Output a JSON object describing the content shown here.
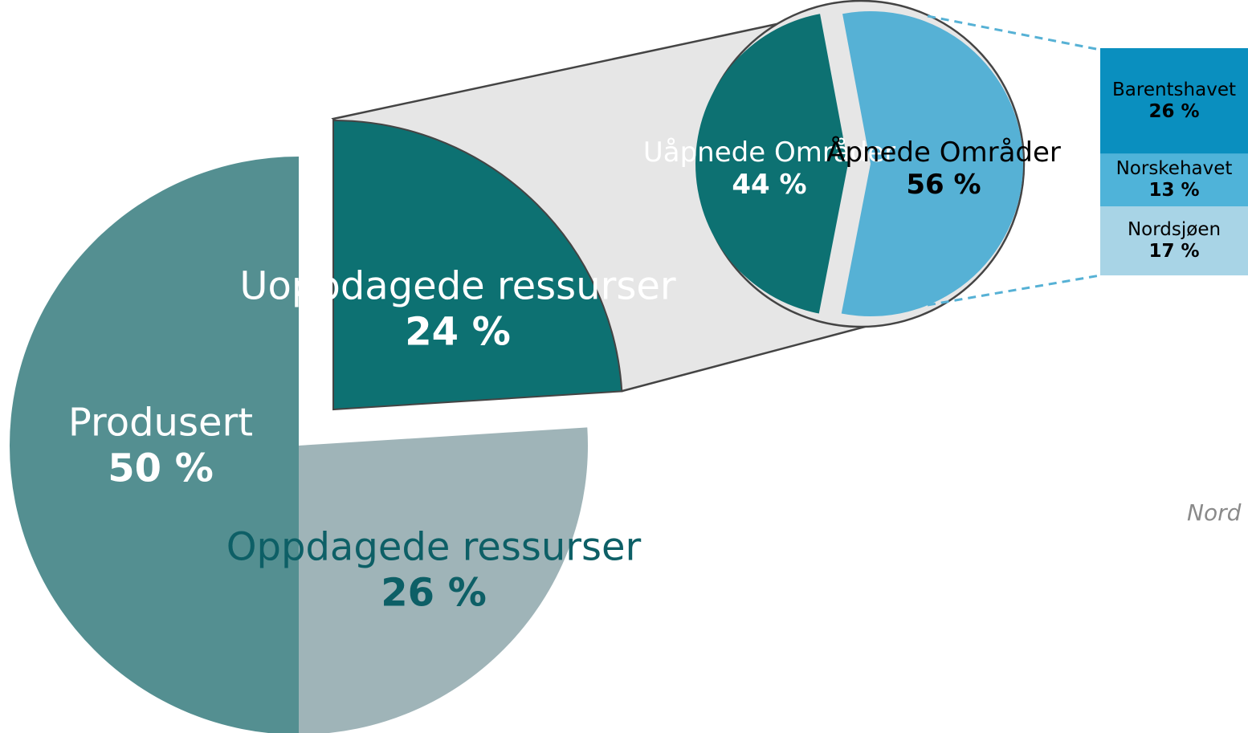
{
  "chart_data": [
    {
      "type": "pie",
      "categories": [
        "Uoppdagede ressurser",
        "Oppdagede ressurser",
        "Produsert"
      ],
      "values": [
        24,
        26,
        50
      ],
      "value_labels": [
        "24 %",
        "26 %",
        "50 %"
      ],
      "colors": [
        "#0d7172",
        "#9fb4b8",
        "#548f91"
      ],
      "label_colors": [
        "#ffffff",
        "#0d5f66",
        "#ffffff"
      ]
    },
    {
      "type": "pie",
      "categories": [
        "Uåpnede Områder",
        "Åpnede Områder"
      ],
      "values": [
        44,
        56
      ],
      "value_labels": [
        "44 %",
        "56 %"
      ],
      "colors": [
        "#0d7172",
        "#56b1d5"
      ],
      "label_colors": [
        "#ffffff",
        "#000000"
      ]
    },
    {
      "type": "bar",
      "stacked": true,
      "series": [
        {
          "name": "Nordsjøen",
          "color": "#a8d4e6",
          "values": [
            17
          ],
          "value_labels": [
            "17 %"
          ]
        },
        {
          "name": "Norskehavet",
          "color": "#4fb3d9",
          "values": [
            13
          ],
          "value_labels": [
            "13 %"
          ]
        },
        {
          "name": "Barentshavet",
          "color": "#0a8fbf",
          "values": [
            26
          ],
          "value_labels": [
            "26 %"
          ]
        }
      ]
    }
  ],
  "map_label": "Nord"
}
